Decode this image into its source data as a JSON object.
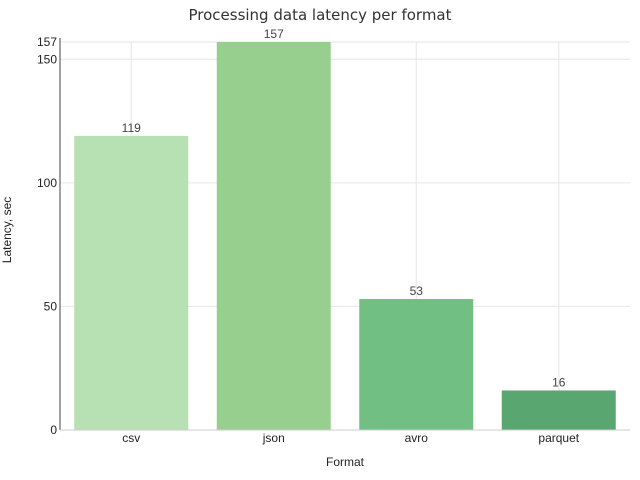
{
  "chart_data": {
    "type": "bar",
    "title": "Processing data latency per format",
    "xlabel": "Format",
    "ylabel": "Latency, sec",
    "categories": [
      "csv",
      "json",
      "avro",
      "parquet"
    ],
    "values": [
      119,
      157,
      53,
      16
    ],
    "data_labels": [
      "119",
      "157",
      "53",
      "16"
    ],
    "ylim": [
      0,
      157
    ],
    "yticks": [
      0,
      50,
      100,
      150,
      157
    ],
    "colors": [
      "#b7e1b2",
      "#97cf8f",
      "#72bf83",
      "#5aa670"
    ],
    "grid": true,
    "legend": "none"
  }
}
